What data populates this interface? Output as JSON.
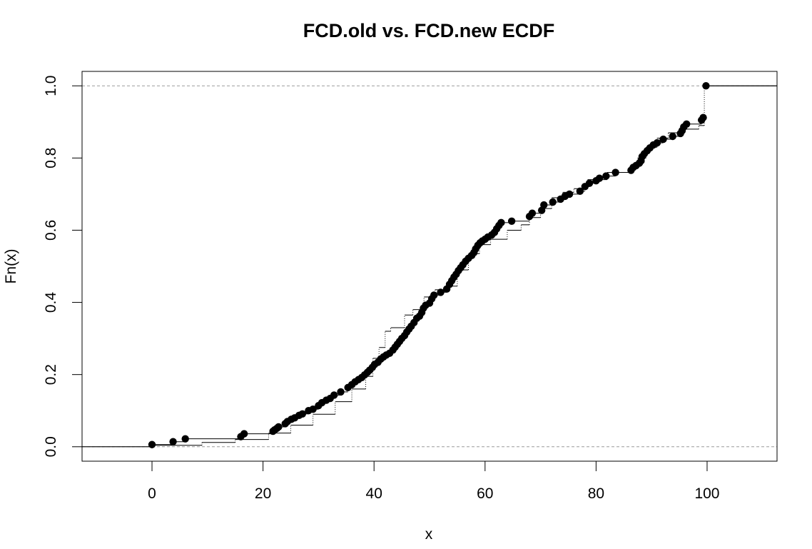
{
  "chart_data": {
    "type": "scatter",
    "title": "FCD.old vs. FCD.new ECDF",
    "xlabel": "x",
    "ylabel": "Fn(x)",
    "xlim": [
      -12.6,
      112.6
    ],
    "ylim": [
      -0.04,
      1.04
    ],
    "x_ticks": [
      0,
      20,
      40,
      60,
      80,
      100
    ],
    "y_ticks": [
      0.0,
      0.2,
      0.4,
      0.6,
      0.8,
      1.0
    ],
    "x_tick_labels": [
      "0",
      "20",
      "40",
      "60",
      "80",
      "100"
    ],
    "y_tick_labels": [
      "0.0",
      "0.2",
      "0.4",
      "0.6",
      "0.8",
      "1.0"
    ],
    "reference_lines": [
      0,
      1
    ],
    "grid": false,
    "legend": "none",
    "series": [
      {
        "style": "points",
        "points": [
          [
            0,
            0.006
          ],
          [
            3.8,
            0.014
          ],
          [
            6.0,
            0.022
          ],
          [
            16.0,
            0.028
          ],
          [
            16.6,
            0.036
          ],
          [
            21.8,
            0.043
          ],
          [
            22.1,
            0.047
          ],
          [
            22.5,
            0.051
          ],
          [
            22.8,
            0.055
          ],
          [
            24.0,
            0.064
          ],
          [
            24.4,
            0.07
          ],
          [
            25.1,
            0.076
          ],
          [
            25.7,
            0.08
          ],
          [
            26.5,
            0.087
          ],
          [
            27.1,
            0.091
          ],
          [
            28.2,
            0.1
          ],
          [
            29.0,
            0.104
          ],
          [
            30.0,
            0.114
          ],
          [
            30.6,
            0.122
          ],
          [
            31.4,
            0.129
          ],
          [
            32.1,
            0.134
          ],
          [
            32.8,
            0.143
          ],
          [
            34.0,
            0.152
          ],
          [
            35.3,
            0.164
          ],
          [
            36.0,
            0.172
          ],
          [
            36.6,
            0.18
          ],
          [
            37.2,
            0.186
          ],
          [
            37.8,
            0.192
          ],
          [
            38.3,
            0.199
          ],
          [
            38.8,
            0.206
          ],
          [
            39.2,
            0.212
          ],
          [
            39.7,
            0.22
          ],
          [
            40.1,
            0.228
          ],
          [
            40.7,
            0.234
          ],
          [
            41.2,
            0.243
          ],
          [
            41.7,
            0.249
          ],
          [
            42.2,
            0.254
          ],
          [
            42.8,
            0.259
          ],
          [
            43.4,
            0.268
          ],
          [
            43.8,
            0.276
          ],
          [
            44.2,
            0.284
          ],
          [
            44.6,
            0.292
          ],
          [
            45.0,
            0.3
          ],
          [
            45.5,
            0.308
          ],
          [
            45.9,
            0.318
          ],
          [
            46.3,
            0.326
          ],
          [
            46.7,
            0.334
          ],
          [
            47.2,
            0.344
          ],
          [
            47.7,
            0.356
          ],
          [
            48.2,
            0.362
          ],
          [
            48.6,
            0.372
          ],
          [
            48.9,
            0.384
          ],
          [
            49.3,
            0.392
          ],
          [
            50.0,
            0.398
          ],
          [
            50.4,
            0.41
          ],
          [
            50.8,
            0.42
          ],
          [
            52.0,
            0.428
          ],
          [
            53.1,
            0.437
          ],
          [
            53.6,
            0.45
          ],
          [
            54.0,
            0.46
          ],
          [
            54.4,
            0.47
          ],
          [
            54.8,
            0.478
          ],
          [
            55.2,
            0.488
          ],
          [
            55.6,
            0.496
          ],
          [
            56.0,
            0.504
          ],
          [
            56.5,
            0.514
          ],
          [
            57.0,
            0.522
          ],
          [
            57.6,
            0.53
          ],
          [
            58.0,
            0.538
          ],
          [
            58.3,
            0.548
          ],
          [
            58.7,
            0.558
          ],
          [
            59.1,
            0.565
          ],
          [
            59.5,
            0.57
          ],
          [
            60.0,
            0.575
          ],
          [
            60.5,
            0.581
          ],
          [
            61.2,
            0.587
          ],
          [
            61.7,
            0.594
          ],
          [
            62.1,
            0.604
          ],
          [
            62.5,
            0.613
          ],
          [
            62.9,
            0.621
          ],
          [
            64.8,
            0.625
          ],
          [
            68.0,
            0.638
          ],
          [
            68.5,
            0.647
          ],
          [
            70.2,
            0.655
          ],
          [
            70.6,
            0.67
          ],
          [
            72.2,
            0.678
          ],
          [
            73.6,
            0.686
          ],
          [
            74.4,
            0.694
          ],
          [
            75.2,
            0.7
          ],
          [
            77.1,
            0.708
          ],
          [
            78.0,
            0.721
          ],
          [
            78.8,
            0.73
          ],
          [
            80.0,
            0.737
          ],
          [
            80.6,
            0.744
          ],
          [
            81.8,
            0.75
          ],
          [
            83.5,
            0.76
          ],
          [
            86.3,
            0.766
          ],
          [
            86.7,
            0.774
          ],
          [
            87.2,
            0.779
          ],
          [
            87.8,
            0.786
          ],
          [
            88.1,
            0.792
          ],
          [
            88.3,
            0.804
          ],
          [
            88.7,
            0.812
          ],
          [
            89.2,
            0.82
          ],
          [
            89.7,
            0.828
          ],
          [
            90.3,
            0.836
          ],
          [
            91.0,
            0.842
          ],
          [
            92.1,
            0.852
          ],
          [
            93.8,
            0.86
          ],
          [
            95.2,
            0.868
          ],
          [
            95.5,
            0.876
          ],
          [
            95.8,
            0.886
          ],
          [
            96.3,
            0.894
          ],
          [
            99.0,
            0.905
          ],
          [
            99.3,
            0.912
          ],
          [
            99.8,
            1.0
          ]
        ]
      },
      {
        "style": "steps",
        "points": [
          [
            0,
            0.004
          ],
          [
            9.0,
            0.012
          ],
          [
            15.0,
            0.02
          ],
          [
            21.0,
            0.038
          ],
          [
            25.0,
            0.06
          ],
          [
            29.0,
            0.09
          ],
          [
            33.0,
            0.125
          ],
          [
            36.0,
            0.16
          ],
          [
            38.5,
            0.195
          ],
          [
            39.8,
            0.245
          ],
          [
            40.9,
            0.275
          ],
          [
            42.0,
            0.32
          ],
          [
            43.0,
            0.33
          ],
          [
            45.5,
            0.365
          ],
          [
            47.0,
            0.38
          ],
          [
            49.0,
            0.415
          ],
          [
            51.0,
            0.435
          ],
          [
            53.0,
            0.445
          ],
          [
            55.0,
            0.49
          ],
          [
            57.0,
            0.535
          ],
          [
            59.0,
            0.56
          ],
          [
            61.0,
            0.575
          ],
          [
            64.0,
            0.6
          ],
          [
            66.5,
            0.615
          ],
          [
            68.0,
            0.635
          ],
          [
            70.0,
            0.66
          ],
          [
            72.0,
            0.69
          ],
          [
            74.0,
            0.705
          ],
          [
            76.0,
            0.715
          ],
          [
            78.5,
            0.74
          ],
          [
            82.0,
            0.76
          ],
          [
            86.0,
            0.775
          ],
          [
            87.5,
            0.8
          ],
          [
            89.0,
            0.83
          ],
          [
            91.0,
            0.855
          ],
          [
            93.0,
            0.87
          ],
          [
            96.0,
            0.88
          ],
          [
            98.5,
            0.89
          ],
          [
            99.5,
            1.0
          ]
        ]
      }
    ]
  }
}
